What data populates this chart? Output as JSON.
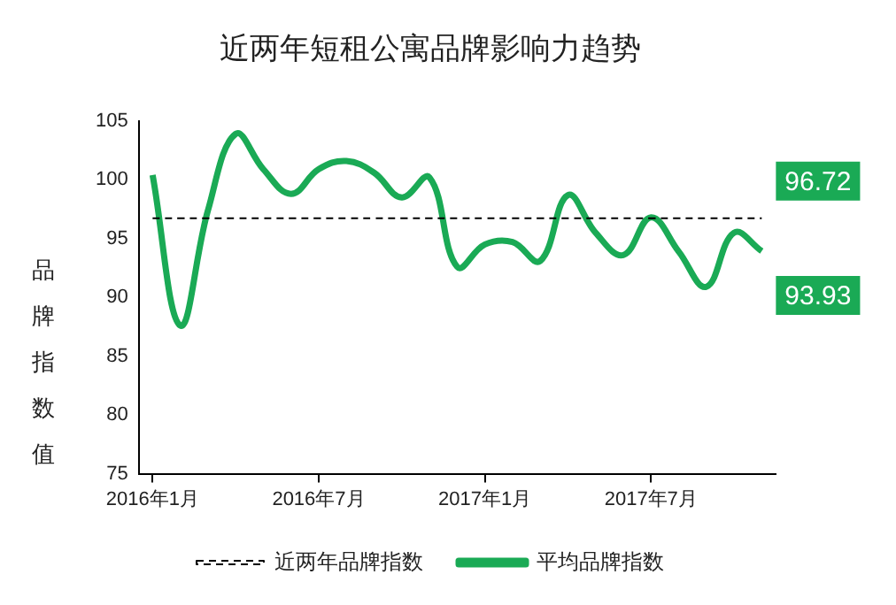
{
  "chart_data": {
    "type": "line",
    "title": "近两年短租公寓品牌影响力趋势",
    "ylabel": "品牌指数值",
    "categories": [
      "2016年1月",
      null,
      null,
      null,
      null,
      null,
      "2016年7月",
      null,
      null,
      null,
      null,
      null,
      "2017年1月",
      null,
      null,
      null,
      null,
      null,
      "2017年7月",
      null,
      null,
      null,
      null
    ],
    "series": [
      {
        "name": "近两年品牌指数",
        "color": "#000000",
        "line_style": "dashed",
        "values": [
          96.72,
          96.72,
          96.72,
          96.72,
          96.72,
          96.72,
          96.72,
          96.72,
          96.72,
          96.72,
          96.72,
          96.72,
          96.72,
          96.72,
          96.72,
          96.72,
          96.72,
          96.72,
          96.72,
          96.72,
          96.72,
          96.72,
          96.72
        ],
        "value_labels": [
          null,
          null,
          null,
          null,
          null,
          null,
          null,
          null,
          null,
          null,
          null,
          null,
          null,
          null,
          null,
          null,
          null,
          null,
          null,
          null,
          null,
          null,
          "96.72"
        ]
      },
      {
        "name": "平均品牌指数",
        "color": "#1aaa55",
        "line_style": "solid",
        "values": [
          100.4,
          87.6,
          97.4,
          103.9,
          100.9,
          98.8,
          100.9,
          101.6,
          100.6,
          98.5,
          100.2,
          92.6,
          94.5,
          94.7,
          93.1,
          98.7,
          95.5,
          93.6,
          96.8,
          93.9,
          90.9,
          95.5,
          93.93
        ],
        "value_labels": [
          null,
          null,
          null,
          null,
          null,
          null,
          null,
          null,
          null,
          null,
          null,
          null,
          null,
          null,
          null,
          null,
          null,
          null,
          null,
          null,
          null,
          null,
          "93.93"
        ]
      }
    ],
    "ylim": [
      75,
      105
    ],
    "yticks": [
      75,
      80,
      85,
      90,
      95,
      100,
      105
    ],
    "grid": false,
    "legend": "bottom",
    "marker": "none"
  }
}
